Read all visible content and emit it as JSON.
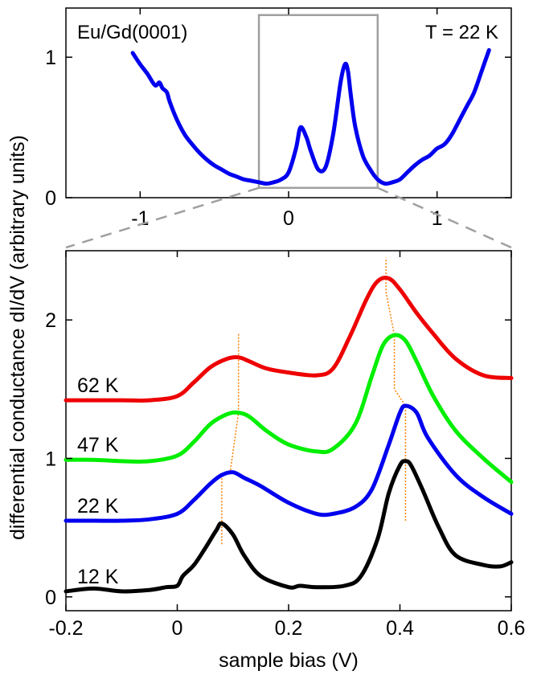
{
  "chart_data": [
    {
      "type": "line",
      "panel": "top",
      "annotations": [
        "Eu/Gd(0001)",
        "T = 22 K"
      ],
      "xlim": [
        -1.5,
        1.5
      ],
      "ylim": [
        0,
        1.35
      ],
      "x_ticks": [
        -1,
        0,
        1
      ],
      "x_tick_labels": [
        "-1",
        "0",
        "1"
      ],
      "y_ticks": [
        0,
        1
      ],
      "y_tick_labels": [
        "0",
        "1"
      ],
      "zoom_box": {
        "x_range": [
          -0.2,
          0.6
        ],
        "y_range": [
          0.07,
          1.3
        ]
      },
      "series": [
        {
          "color": "#0000ee",
          "x": [
            -1.05,
            -1.0,
            -0.95,
            -0.9,
            -0.87,
            -0.85,
            -0.82,
            -0.8,
            -0.75,
            -0.7,
            -0.65,
            -0.6,
            -0.55,
            -0.5,
            -0.45,
            -0.4,
            -0.35,
            -0.3,
            -0.25,
            -0.2,
            -0.15,
            -0.1,
            -0.05,
            0.0,
            0.05,
            0.08,
            0.12,
            0.15,
            0.2,
            0.25,
            0.3,
            0.35,
            0.38,
            0.4,
            0.42,
            0.45,
            0.5,
            0.55,
            0.6,
            0.65,
            0.7,
            0.75,
            0.8,
            0.85,
            0.9,
            0.95,
            1.0,
            1.05,
            1.1,
            1.15,
            1.2,
            1.25,
            1.3,
            1.35
          ],
          "y": [
            1.03,
            0.95,
            0.88,
            0.8,
            0.82,
            0.78,
            0.75,
            0.68,
            0.55,
            0.45,
            0.38,
            0.32,
            0.27,
            0.23,
            0.2,
            0.17,
            0.15,
            0.13,
            0.12,
            0.11,
            0.1,
            0.11,
            0.13,
            0.18,
            0.35,
            0.5,
            0.43,
            0.33,
            0.2,
            0.22,
            0.45,
            0.82,
            0.95,
            0.9,
            0.72,
            0.5,
            0.3,
            0.2,
            0.13,
            0.1,
            0.11,
            0.13,
            0.18,
            0.23,
            0.27,
            0.3,
            0.35,
            0.38,
            0.45,
            0.55,
            0.65,
            0.75,
            0.9,
            1.05
          ]
        }
      ]
    },
    {
      "type": "line",
      "panel": "bottom",
      "xlabel": "sample bias (V)",
      "ylabel": "differential conductance dI/dV (arbitrary units)",
      "xlim": [
        -0.2,
        0.6
      ],
      "ylim": [
        -0.1,
        2.5
      ],
      "x_ticks": [
        -0.2,
        0,
        0.2,
        0.4,
        0.6
      ],
      "x_tick_labels": [
        "-0.2",
        "0",
        "0.2",
        "0.4",
        "0.6"
      ],
      "y_ticks": [
        0,
        1,
        2
      ],
      "y_tick_labels": [
        "0",
        "1",
        "2"
      ],
      "series": [
        {
          "name": "12 K",
          "color": "#000000",
          "x": [
            -0.2,
            -0.15,
            -0.1,
            -0.05,
            -0.02,
            0.0,
            0.01,
            0.03,
            0.05,
            0.07,
            0.08,
            0.1,
            0.12,
            0.15,
            0.2,
            0.22,
            0.25,
            0.3,
            0.33,
            0.36,
            0.38,
            0.4,
            0.41,
            0.42,
            0.44,
            0.47,
            0.5,
            0.55,
            0.58,
            0.6
          ],
          "y": [
            0.04,
            0.06,
            0.04,
            0.05,
            0.07,
            0.08,
            0.15,
            0.23,
            0.35,
            0.48,
            0.53,
            0.45,
            0.3,
            0.15,
            0.07,
            0.08,
            0.07,
            0.08,
            0.15,
            0.42,
            0.75,
            0.95,
            0.98,
            0.95,
            0.78,
            0.5,
            0.3,
            0.23,
            0.22,
            0.25
          ]
        },
        {
          "name": "22 K",
          "color": "#0000ee",
          "x": [
            -0.2,
            -0.15,
            -0.1,
            -0.05,
            0.0,
            0.03,
            0.06,
            0.08,
            0.1,
            0.12,
            0.15,
            0.2,
            0.25,
            0.28,
            0.32,
            0.35,
            0.38,
            0.4,
            0.41,
            0.43,
            0.45,
            0.5,
            0.55,
            0.6
          ],
          "y": [
            0.55,
            0.55,
            0.55,
            0.56,
            0.6,
            0.7,
            0.82,
            0.88,
            0.9,
            0.86,
            0.8,
            0.68,
            0.6,
            0.6,
            0.65,
            0.78,
            1.1,
            1.33,
            1.38,
            1.33,
            1.15,
            0.88,
            0.72,
            0.6
          ]
        },
        {
          "name": "47 K",
          "color": "#00ee00",
          "x": [
            -0.2,
            -0.15,
            -0.1,
            -0.05,
            0.0,
            0.03,
            0.06,
            0.09,
            0.11,
            0.13,
            0.16,
            0.2,
            0.25,
            0.28,
            0.32,
            0.35,
            0.37,
            0.39,
            0.41,
            0.43,
            0.46,
            0.5,
            0.55,
            0.6
          ],
          "y": [
            0.99,
            0.99,
            0.98,
            0.98,
            1.02,
            1.12,
            1.25,
            1.32,
            1.33,
            1.3,
            1.2,
            1.1,
            1.05,
            1.07,
            1.25,
            1.6,
            1.82,
            1.89,
            1.85,
            1.7,
            1.45,
            1.2,
            1.0,
            0.83
          ]
        },
        {
          "name": "62 K",
          "color": "#ee0000",
          "x": [
            -0.2,
            -0.15,
            -0.1,
            -0.05,
            0.0,
            0.03,
            0.06,
            0.09,
            0.11,
            0.13,
            0.16,
            0.2,
            0.25,
            0.28,
            0.31,
            0.34,
            0.36,
            0.38,
            0.4,
            0.43,
            0.46,
            0.5,
            0.55,
            0.6
          ],
          "y": [
            1.42,
            1.42,
            1.42,
            1.42,
            1.45,
            1.55,
            1.66,
            1.72,
            1.73,
            1.7,
            1.65,
            1.62,
            1.6,
            1.65,
            1.88,
            2.15,
            2.28,
            2.3,
            2.22,
            2.05,
            1.9,
            1.72,
            1.6,
            1.58
          ]
        }
      ],
      "guides": {
        "color": "#ff8000",
        "lines": [
          {
            "x": [
              0.08,
              0.08,
              0.095,
              0.11,
              0.11,
              0.11
            ],
            "y": [
              0.38,
              0.88,
              0.9,
              1.33,
              1.73,
              1.9
            ]
          },
          {
            "x": [
              0.41,
              0.41,
              0.39,
              0.39,
              0.375,
              0.375
            ],
            "y": [
              0.55,
              1.38,
              1.5,
              1.89,
              2.2,
              2.45
            ]
          }
        ]
      }
    }
  ]
}
